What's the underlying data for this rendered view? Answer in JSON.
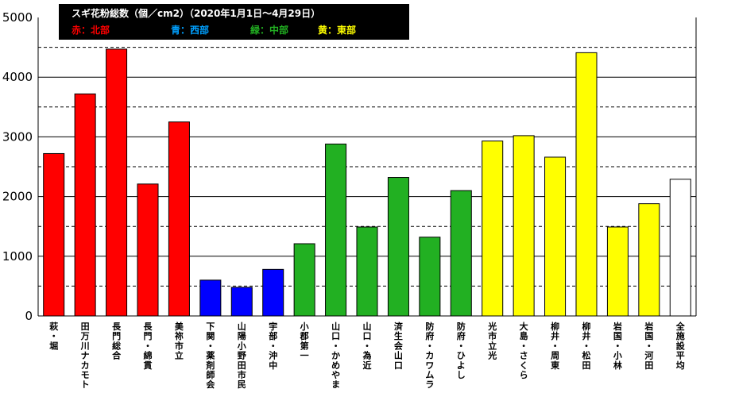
{
  "chart_data": {
    "type": "bar",
    "title": "スギ花粉総数（個／cm2）（2020年1月1日～4月29日）",
    "legend": [
      {
        "label": "赤：北部",
        "color": "#ff0000"
      },
      {
        "label": "青：西部",
        "color": "#00a0ff"
      },
      {
        "label": "緑：中部",
        "color": "#22b022"
      },
      {
        "label": "黄：東部",
        "color": "#ffff00"
      }
    ],
    "ylim": [
      0,
      5000
    ],
    "yticks": [
      0,
      1000,
      2000,
      3000,
      4000,
      5000
    ],
    "grid": true,
    "categories": [
      "萩・堀",
      "田万川ナカモト",
      "長門総合",
      "長門・綿貫",
      "美祢市立",
      "下関・薬剤師会",
      "山陽小野田市民",
      "宇部・沖中",
      "小郡第一",
      "山口・かめやま",
      "山口・為近",
      "済生会山口",
      "防府・カワムラ",
      "防府・ひよし",
      "光市立光",
      "大島・さくら",
      "柳井・周東",
      "柳井・松田",
      "岩国・小林",
      "岩国・河田",
      "全施設平均"
    ],
    "values": [
      2720,
      3720,
      4470,
      2210,
      3250,
      600,
      480,
      780,
      1210,
      2880,
      1490,
      2320,
      1320,
      2100,
      2930,
      3020,
      2660,
      4410,
      1490,
      1880,
      2290
    ],
    "colors": [
      "#ff0000",
      "#ff0000",
      "#ff0000",
      "#ff0000",
      "#ff0000",
      "#0000ff",
      "#0000ff",
      "#0000ff",
      "#22b022",
      "#22b022",
      "#22b022",
      "#22b022",
      "#22b022",
      "#22b022",
      "#ffff00",
      "#ffff00",
      "#ffff00",
      "#ffff00",
      "#ffff00",
      "#ffff00",
      "#ffffff"
    ]
  }
}
